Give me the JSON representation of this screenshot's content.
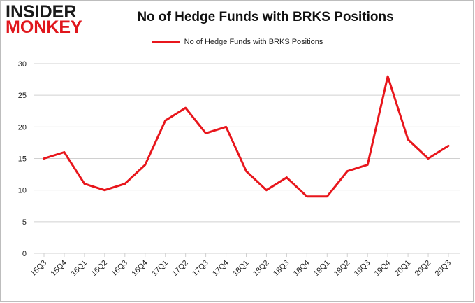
{
  "logo": {
    "line1": "INSIDER",
    "line2": "MONKEY"
  },
  "chart_data": {
    "type": "line",
    "title": "No of Hedge Funds with BRKS Positions",
    "xlabel": "",
    "ylabel": "",
    "categories": [
      "15Q3",
      "15Q4",
      "16Q1",
      "16Q2",
      "16Q3",
      "16Q4",
      "17Q1",
      "17Q2",
      "17Q3",
      "17Q4",
      "18Q1",
      "18Q2",
      "18Q3",
      "18Q4",
      "19Q1",
      "19Q2",
      "19Q3",
      "19Q4",
      "20Q1",
      "20Q2",
      "20Q3"
    ],
    "series": [
      {
        "name": "No of Hedge Funds with BRKS Positions",
        "color": "#e8161c",
        "values": [
          15,
          16,
          11,
          10,
          11,
          14,
          21,
          23,
          19,
          20,
          13,
          10,
          12,
          9,
          9,
          13,
          14,
          28,
          18,
          15,
          17
        ]
      }
    ],
    "ylim": [
      0,
      30
    ],
    "yticks": [
      0,
      5,
      10,
      15,
      20,
      25,
      30
    ],
    "grid": true,
    "legend": "top-center"
  }
}
